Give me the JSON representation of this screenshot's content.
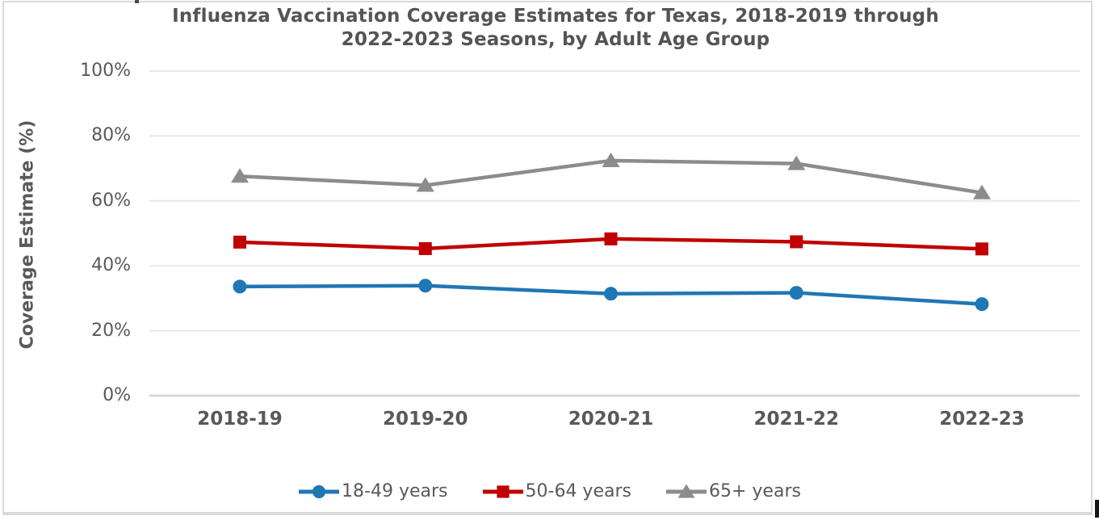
{
  "frame": {
    "border_color": "#dadada",
    "background": "#ffffff"
  },
  "chart_data": {
    "type": "line",
    "title": "Influenza Vaccination Coverage Estimates for Texas, 2018-2019 through 2022-2023 Seasons, by Adult Age Group",
    "title_lines": [
      "Influenza Vaccination Coverage Estimates for Texas, 2018-2019 through",
      "2022-2023 Seasons, by Adult Age Group"
    ],
    "xlabel": "",
    "ylabel": "Coverage Estimate (%)",
    "categories": [
      "2018-19",
      "2019-20",
      "2020-21",
      "2021-22",
      "2022-23"
    ],
    "y_ticks": [
      0,
      20,
      40,
      60,
      80,
      100
    ],
    "y_tick_labels": [
      "0%",
      "20%",
      "40%",
      "60%",
      "80%",
      "100%"
    ],
    "ylim": [
      0,
      100
    ],
    "grid": true,
    "legend_position": "bottom",
    "series": [
      {
        "name": "18-49 years",
        "marker": "circle",
        "color": "#1f77b4",
        "values": [
          33.6,
          33.9,
          31.4,
          31.7,
          28.2
        ]
      },
      {
        "name": "50-64 years",
        "marker": "square",
        "color": "#c00000",
        "values": [
          47.3,
          45.3,
          48.3,
          47.4,
          45.2
        ]
      },
      {
        "name": "65+ years",
        "marker": "triangle",
        "color": "#8c8c8c",
        "values": [
          67.6,
          64.8,
          72.4,
          71.5,
          62.5
        ]
      }
    ],
    "colors": {
      "text": "#595959",
      "title_text": "#545454",
      "gridline": "#e8e8e8",
      "axis_line": "#d4d4d4"
    }
  }
}
